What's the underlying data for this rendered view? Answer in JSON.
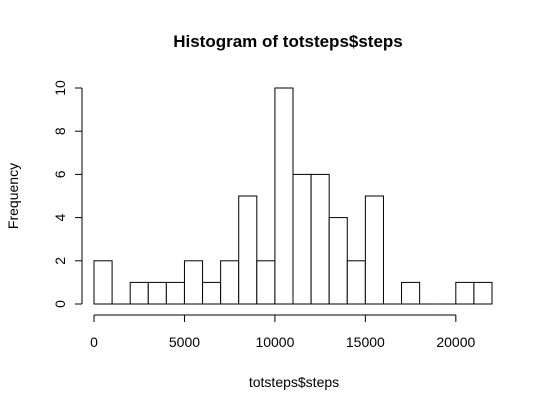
{
  "chart_data": {
    "type": "bar",
    "title": "Histogram of totsteps$steps",
    "xlabel": "totsteps$steps",
    "ylabel": "Frequency",
    "bin_width": 1000,
    "bins": [
      {
        "from": 0,
        "to": 1000,
        "count": 2
      },
      {
        "from": 1000,
        "to": 2000,
        "count": 0
      },
      {
        "from": 2000,
        "to": 3000,
        "count": 1
      },
      {
        "from": 3000,
        "to": 4000,
        "count": 1
      },
      {
        "from": 4000,
        "to": 5000,
        "count": 1
      },
      {
        "from": 5000,
        "to": 6000,
        "count": 2
      },
      {
        "from": 6000,
        "to": 7000,
        "count": 1
      },
      {
        "from": 7000,
        "to": 8000,
        "count": 2
      },
      {
        "from": 8000,
        "to": 9000,
        "count": 5
      },
      {
        "from": 9000,
        "to": 10000,
        "count": 2
      },
      {
        "from": 10000,
        "to": 11000,
        "count": 10
      },
      {
        "from": 11000,
        "to": 12000,
        "count": 6
      },
      {
        "from": 12000,
        "to": 13000,
        "count": 6
      },
      {
        "from": 13000,
        "to": 14000,
        "count": 4
      },
      {
        "from": 14000,
        "to": 15000,
        "count": 2
      },
      {
        "from": 15000,
        "to": 16000,
        "count": 5
      },
      {
        "from": 16000,
        "to": 17000,
        "count": 0
      },
      {
        "from": 17000,
        "to": 18000,
        "count": 1
      },
      {
        "from": 18000,
        "to": 19000,
        "count": 0
      },
      {
        "from": 19000,
        "to": 20000,
        "count": 0
      },
      {
        "from": 20000,
        "to": 21000,
        "count": 1
      },
      {
        "from": 21000,
        "to": 22000,
        "count": 1
      }
    ],
    "xticks": [
      "0",
      "5000",
      "10000",
      "15000",
      "20000"
    ],
    "yticks": [
      "0",
      "2",
      "4",
      "6",
      "8",
      "10"
    ],
    "xlim": [
      0,
      22000
    ],
    "ylim": [
      0,
      10
    ],
    "grid": false,
    "bar_fill": "#ffffff",
    "bar_stroke": "#000000"
  }
}
